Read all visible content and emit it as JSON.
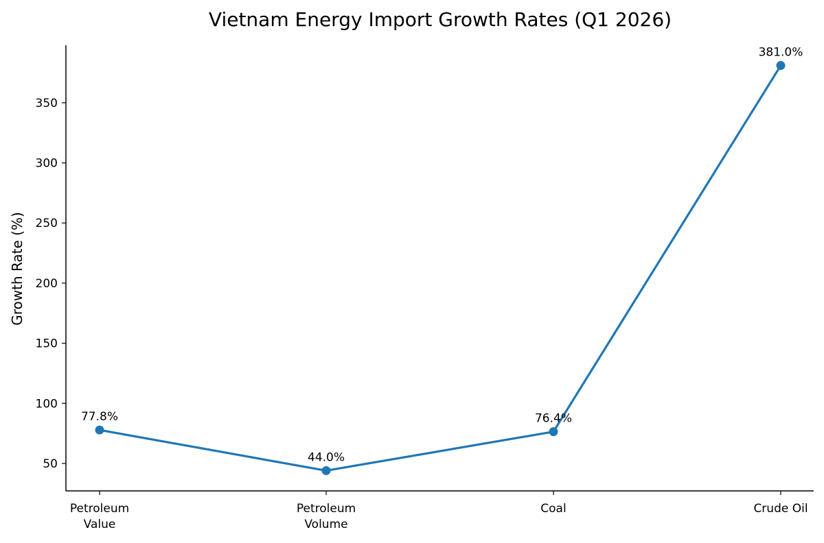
{
  "chart_data": {
    "type": "line",
    "title": "Vietnam Energy Import Growth Rates (Q1 2026)",
    "xlabel": "",
    "ylabel": "Growth Rate (%)",
    "categories": [
      [
        "Petroleum",
        "Value"
      ],
      [
        "Petroleum",
        "Volume"
      ],
      [
        "Coal"
      ],
      [
        "Crude Oil"
      ]
    ],
    "series": [
      {
        "values": [
          77.8,
          44.0,
          76.4,
          381.0
        ],
        "color": "#1f77b4"
      }
    ],
    "data_labels": [
      "77.8%",
      "44.0%",
      "76.4%",
      "381.0%"
    ],
    "ylim": [
      27.15,
      397.85
    ],
    "yticks": [
      50,
      100,
      150,
      200,
      250,
      300,
      350
    ],
    "grid": false,
    "legend": "none"
  }
}
